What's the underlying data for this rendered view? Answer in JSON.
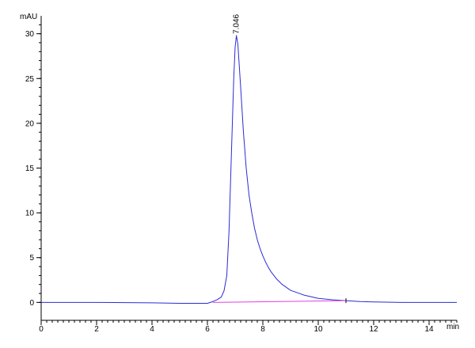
{
  "chart_data": {
    "type": "line",
    "y_unit_label": "mAU",
    "x_unit_label": "min",
    "xlim": [
      0,
      15
    ],
    "ylim": [
      -2,
      32
    ],
    "x_ticks": [
      0,
      2,
      4,
      6,
      8,
      10,
      12,
      14
    ],
    "y_ticks": [
      0,
      5,
      10,
      15,
      20,
      25,
      30
    ],
    "x_minor_step": 0.2,
    "y_minor_step": 1,
    "grid": false,
    "peak": {
      "label": "7.046",
      "x": 7.046,
      "y": 29.8
    },
    "series": [
      {
        "color": "#2b2bd6",
        "x": [
          0,
          2,
          4,
          5,
          6,
          6.2,
          6.35,
          6.5,
          6.6,
          6.7,
          6.78,
          6.85,
          6.9,
          6.95,
          7.0,
          7.046,
          7.1,
          7.2,
          7.3,
          7.4,
          7.5,
          7.6,
          7.7,
          7.8,
          7.9,
          8.0,
          8.1,
          8.2,
          8.3,
          8.5,
          8.7,
          9.0,
          9.5,
          10.0,
          10.5,
          11.0,
          11.5,
          12,
          13,
          14,
          15
        ],
        "y": [
          0,
          0,
          -0.05,
          -0.1,
          -0.1,
          0.1,
          0.3,
          0.6,
          1.3,
          3.0,
          8.0,
          15.0,
          20.0,
          25.0,
          28.5,
          29.8,
          28.8,
          24.0,
          19.0,
          15.0,
          12.0,
          10.0,
          8.3,
          7.0,
          6.0,
          5.2,
          4.5,
          3.9,
          3.4,
          2.6,
          2.0,
          1.35,
          0.8,
          0.45,
          0.3,
          0.2,
          0.1,
          0.05,
          0,
          0,
          0
        ]
      },
      {
        "color": "#e040e0",
        "x": [
          6.2,
          11.0
        ],
        "y": [
          0.0,
          0.2
        ]
      }
    ]
  }
}
